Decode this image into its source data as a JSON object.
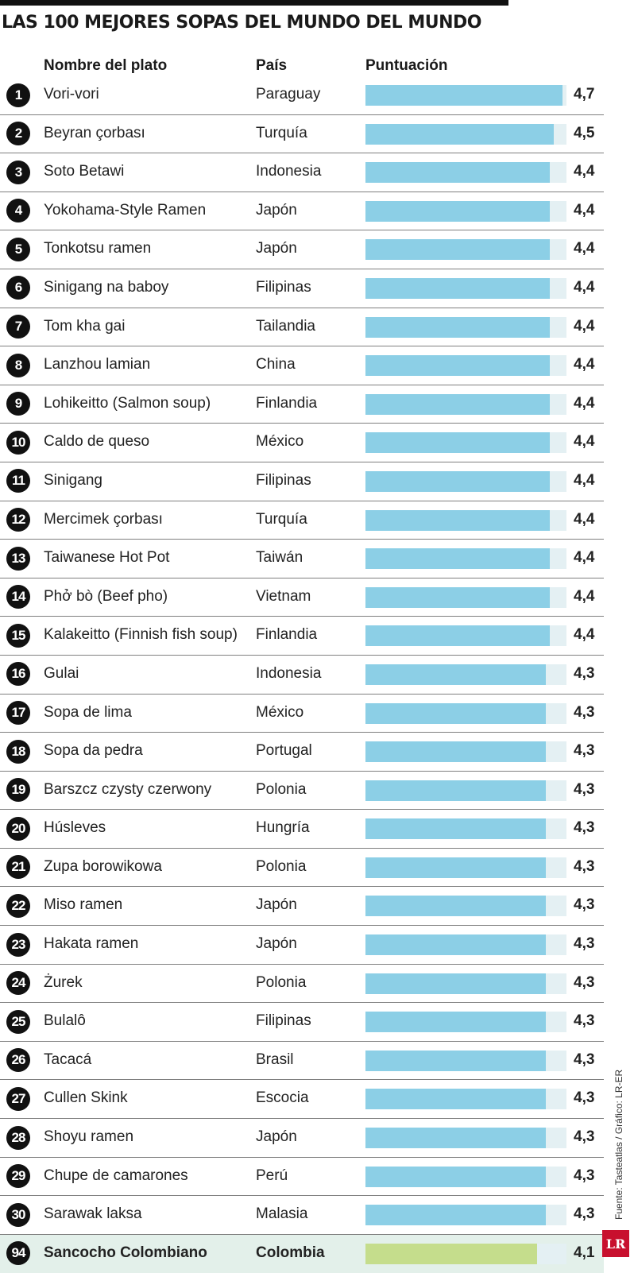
{
  "colors": {
    "bar": "#8ccfe6",
    "highlight_bar": "#c5dd8c",
    "track": "#e4f0f3",
    "highlight_row": "#e3f0ea"
  },
  "title": "LAS 100 MEJORES SOPAS DEL MUNDO DEL MUNDO",
  "headers": {
    "dish": "Nombre del plato",
    "country": "País",
    "score": "Puntuación"
  },
  "source": "Fuente: Tasteatlas / Gráfico: LR-ER",
  "logo": "LR",
  "chart_data": {
    "type": "bar",
    "orientation": "horizontal",
    "xlim": [
      0,
      4.8
    ],
    "rows": [
      {
        "rank": "1",
        "dish": "Vori-vori",
        "country": "Paraguay",
        "score": 4.7,
        "label": "4,7"
      },
      {
        "rank": "2",
        "dish": "Beyran çorbası",
        "country": "Turquía",
        "score": 4.5,
        "label": "4,5"
      },
      {
        "rank": "3",
        "dish": "Soto Betawi",
        "country": "Indonesia",
        "score": 4.4,
        "label": "4,4"
      },
      {
        "rank": "4",
        "dish": "Yokohama-Style Ramen",
        "country": "Japón",
        "score": 4.4,
        "label": "4,4"
      },
      {
        "rank": "5",
        "dish": "Tonkotsu ramen",
        "country": "Japón",
        "score": 4.4,
        "label": "4,4"
      },
      {
        "rank": "6",
        "dish": "Sinigang na baboy",
        "country": "Filipinas",
        "score": 4.4,
        "label": "4,4"
      },
      {
        "rank": "7",
        "dish": "Tom kha gai",
        "country": "Tailandia",
        "score": 4.4,
        "label": "4,4"
      },
      {
        "rank": "8",
        "dish": "Lanzhou lamian",
        "country": "China",
        "score": 4.4,
        "label": "4,4"
      },
      {
        "rank": "9",
        "dish": "Lohikeitto (Salmon soup)",
        "country": "Finlandia",
        "score": 4.4,
        "label": "4,4"
      },
      {
        "rank": "10",
        "dish": "Caldo de queso",
        "country": "México",
        "score": 4.4,
        "label": "4,4"
      },
      {
        "rank": "11",
        "dish": "Sinigang",
        "country": "Filipinas",
        "score": 4.4,
        "label": "4,4"
      },
      {
        "rank": "12",
        "dish": "Mercimek çorbası",
        "country": "Turquía",
        "score": 4.4,
        "label": "4,4"
      },
      {
        "rank": "13",
        "dish": "Taiwanese Hot Pot",
        "country": "Taiwán",
        "score": 4.4,
        "label": "4,4"
      },
      {
        "rank": "14",
        "dish": "Phở bò (Beef pho)",
        "country": "Vietnam",
        "score": 4.4,
        "label": "4,4"
      },
      {
        "rank": "15",
        "dish": "Kalakeitto (Finnish fish soup)",
        "country": "Finlandia",
        "score": 4.4,
        "label": "4,4"
      },
      {
        "rank": "16",
        "dish": "Gulai",
        "country": "Indonesia",
        "score": 4.3,
        "label": "4,3"
      },
      {
        "rank": "17",
        "dish": "Sopa de lima",
        "country": "México",
        "score": 4.3,
        "label": "4,3"
      },
      {
        "rank": "18",
        "dish": "Sopa da pedra",
        "country": "Portugal",
        "score": 4.3,
        "label": "4,3"
      },
      {
        "rank": "19",
        "dish": "Barszcz czysty czerwony",
        "country": "Polonia",
        "score": 4.3,
        "label": "4,3"
      },
      {
        "rank": "20",
        "dish": "Húsleves",
        "country": "Hungría",
        "score": 4.3,
        "label": "4,3"
      },
      {
        "rank": "21",
        "dish": "Zupa borowikowa",
        "country": "Polonia",
        "score": 4.3,
        "label": "4,3"
      },
      {
        "rank": "22",
        "dish": "Miso ramen",
        "country": "Japón",
        "score": 4.3,
        "label": "4,3"
      },
      {
        "rank": "23",
        "dish": "Hakata ramen",
        "country": "Japón",
        "score": 4.3,
        "label": "4,3"
      },
      {
        "rank": "24",
        "dish": "Żurek",
        "country": "Polonia",
        "score": 4.3,
        "label": "4,3"
      },
      {
        "rank": "25",
        "dish": "Bulalô",
        "country": "Filipinas",
        "score": 4.3,
        "label": "4,3"
      },
      {
        "rank": "26",
        "dish": "Tacacá",
        "country": "Brasil",
        "score": 4.3,
        "label": "4,3"
      },
      {
        "rank": "27",
        "dish": "Cullen Skink",
        "country": "Escocia",
        "score": 4.3,
        "label": "4,3"
      },
      {
        "rank": "28",
        "dish": "Shoyu ramen",
        "country": "Japón",
        "score": 4.3,
        "label": "4,3"
      },
      {
        "rank": "29",
        "dish": "Chupe de camarones",
        "country": "Perú",
        "score": 4.3,
        "label": "4,3"
      },
      {
        "rank": "30",
        "dish": "Sarawak laksa",
        "country": "Malasia",
        "score": 4.3,
        "label": "4,3"
      },
      {
        "rank": "94",
        "dish": "Sancocho Colombiano",
        "country": "Colombia",
        "score": 4.1,
        "label": "4,1",
        "highlight": true
      }
    ]
  }
}
